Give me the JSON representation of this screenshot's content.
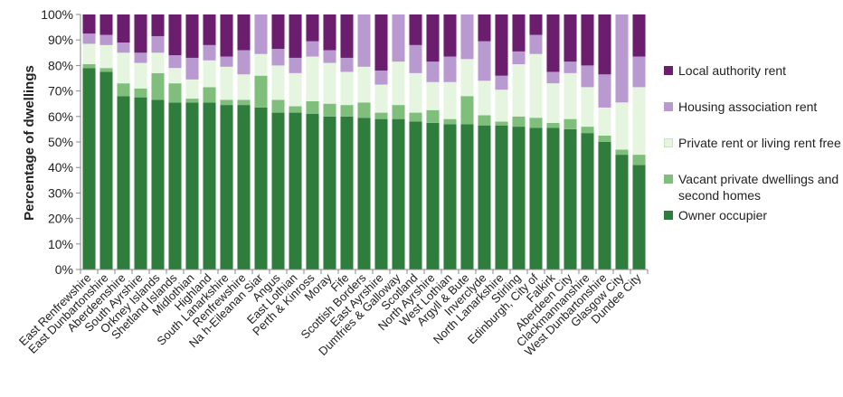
{
  "chart_data": {
    "type": "bar",
    "stacked": true,
    "title": "",
    "xlabel": "",
    "ylabel": "Percentage of dwellings",
    "ylim": [
      0,
      100
    ],
    "yticks": [
      "0%",
      "10%",
      "20%",
      "30%",
      "40%",
      "50%",
      "60%",
      "70%",
      "80%",
      "90%",
      "100%"
    ],
    "grid": false,
    "legend_position": "right",
    "categories": [
      "East Renfrewshire",
      "East Dunbartonshire",
      "Aberdeenshire",
      "South Ayrshire",
      "Orkney Islands",
      "Shetland Islands",
      "Midlothian",
      "Highland",
      "South Lanarkshire",
      "Renfrewshire",
      "Na h-Eileanan Siar",
      "Angus",
      "East Lothian",
      "Perth & Kinross",
      "Moray",
      "Fife",
      "Scottish Borders",
      "East Ayrshire",
      "Dumfries & Galloway",
      "Scotland",
      "North Ayrshire",
      "West Lothian",
      "Argyll & Bute",
      "Inverclyde",
      "North Lanarkshire",
      "Stirling",
      "Edinburgh, City of",
      "Falkirk",
      "Aberdeen City",
      "Clackmannanshire",
      "West Dunbartonshire",
      "Glasgow City",
      "Dundee City"
    ],
    "series": [
      {
        "name": "Owner occupier",
        "color": "#2e7d3c",
        "values": [
          79,
          77.5,
          68,
          67.5,
          66.5,
          65.5,
          65.5,
          65.5,
          64.5,
          64.5,
          63.5,
          61.5,
          61.5,
          61,
          60,
          60,
          59.5,
          59,
          59,
          58,
          57.5,
          57,
          57,
          56.5,
          56.5,
          56,
          55.5,
          55.5,
          55,
          53.5,
          50,
          45,
          41
        ]
      },
      {
        "name": "Vacant private dwellings and second homes",
        "color": "#7fbf7b",
        "values": [
          1.5,
          1.5,
          5,
          3.5,
          10.5,
          7.5,
          1.5,
          6,
          2,
          2,
          12.5,
          5,
          2.5,
          5,
          5,
          4.5,
          6,
          2.5,
          5.5,
          3.5,
          5,
          2,
          11,
          4,
          1.5,
          4,
          4,
          2,
          4,
          2.5,
          2.5,
          2,
          4
        ]
      },
      {
        "name": "Private rent or living rent free",
        "color": "#e6f5e0",
        "values": [
          8,
          9,
          12,
          10,
          8,
          6,
          7.5,
          10.5,
          13,
          10,
          8.5,
          13.5,
          13,
          17.5,
          16,
          13,
          14,
          11,
          17,
          15.5,
          11,
          14.5,
          14.5,
          13.5,
          12.5,
          20.5,
          25,
          15.5,
          18,
          15.5,
          11,
          18.5,
          26.5
        ]
      },
      {
        "name": "Housing association rent",
        "color": "#b99ad0",
        "values": [
          4,
          4,
          4,
          4,
          6.5,
          5,
          8.5,
          6,
          4,
          9.5,
          15.5,
          6.5,
          6,
          6,
          5,
          5.5,
          20.5,
          5.5,
          18.5,
          11,
          8,
          10,
          17.5,
          15.5,
          5.5,
          5,
          7.5,
          4.5,
          4.5,
          8.5,
          13,
          34.5,
          12
        ]
      },
      {
        "name": "Local authority rent",
        "color": "#6b1e6e",
        "values": [
          7.5,
          8,
          11,
          15,
          8.5,
          16,
          17,
          12,
          16.5,
          14,
          0,
          13.5,
          17,
          10.5,
          14,
          17,
          0,
          22,
          0,
          12,
          18.5,
          16.5,
          0,
          10.5,
          24,
          14.5,
          8,
          22.5,
          18.5,
          20,
          23.5,
          0,
          16.5
        ]
      }
    ]
  },
  "legend": {
    "items": [
      {
        "label": "Local authority rent",
        "color": "#6b1e6e"
      },
      {
        "label": "Housing association rent",
        "color": "#b99ad0"
      },
      {
        "label": "Private rent or living rent free",
        "color": "#e6f5e0"
      },
      {
        "label": "Vacant private dwellings and second homes",
        "color": "#7fbf7b"
      },
      {
        "label": "Owner occupier",
        "color": "#2e7d3c"
      }
    ]
  }
}
